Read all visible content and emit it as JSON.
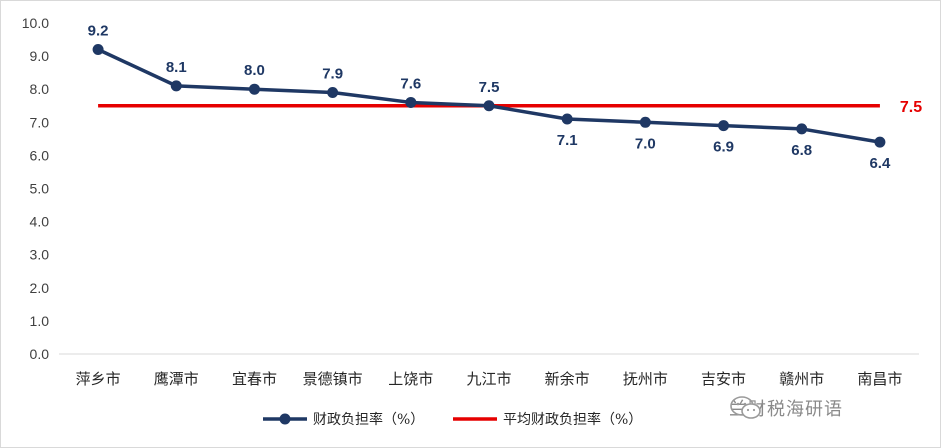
{
  "chart_data": {
    "type": "line",
    "categories": [
      "萍乡市",
      "鹰潭市",
      "宜春市",
      "景德镇市",
      "上饶市",
      "九江市",
      "新余市",
      "抚州市",
      "吉安市",
      "赣州市",
      "南昌市"
    ],
    "series": [
      {
        "name": "财政负担率（%）",
        "values": [
          9.2,
          8.1,
          8.0,
          7.9,
          7.6,
          7.5,
          7.1,
          7.0,
          6.9,
          6.8,
          6.4
        ],
        "data_labels": [
          "9.2",
          "8.1",
          "8.0",
          "7.9",
          "7.6",
          "7.5",
          "7.1",
          "7.0",
          "6.9",
          "6.8",
          "6.4"
        ],
        "color": "#1f3864"
      },
      {
        "name": "平均财政负担率（%）",
        "values": [
          7.5,
          7.5,
          7.5,
          7.5,
          7.5,
          7.5,
          7.5,
          7.5,
          7.5,
          7.5,
          7.5
        ],
        "data_label": "7.5",
        "color": "#e60000"
      }
    ],
    "ylim": [
      0,
      10
    ],
    "yticks": [
      "0.0",
      "1.0",
      "2.0",
      "3.0",
      "4.0",
      "5.0",
      "6.0",
      "7.0",
      "8.0",
      "9.0",
      "10.0"
    ],
    "grid": false,
    "legend_position": "bottom"
  },
  "watermark": {
    "text": "兰财税海研语",
    "icon": "wechat-icon"
  }
}
